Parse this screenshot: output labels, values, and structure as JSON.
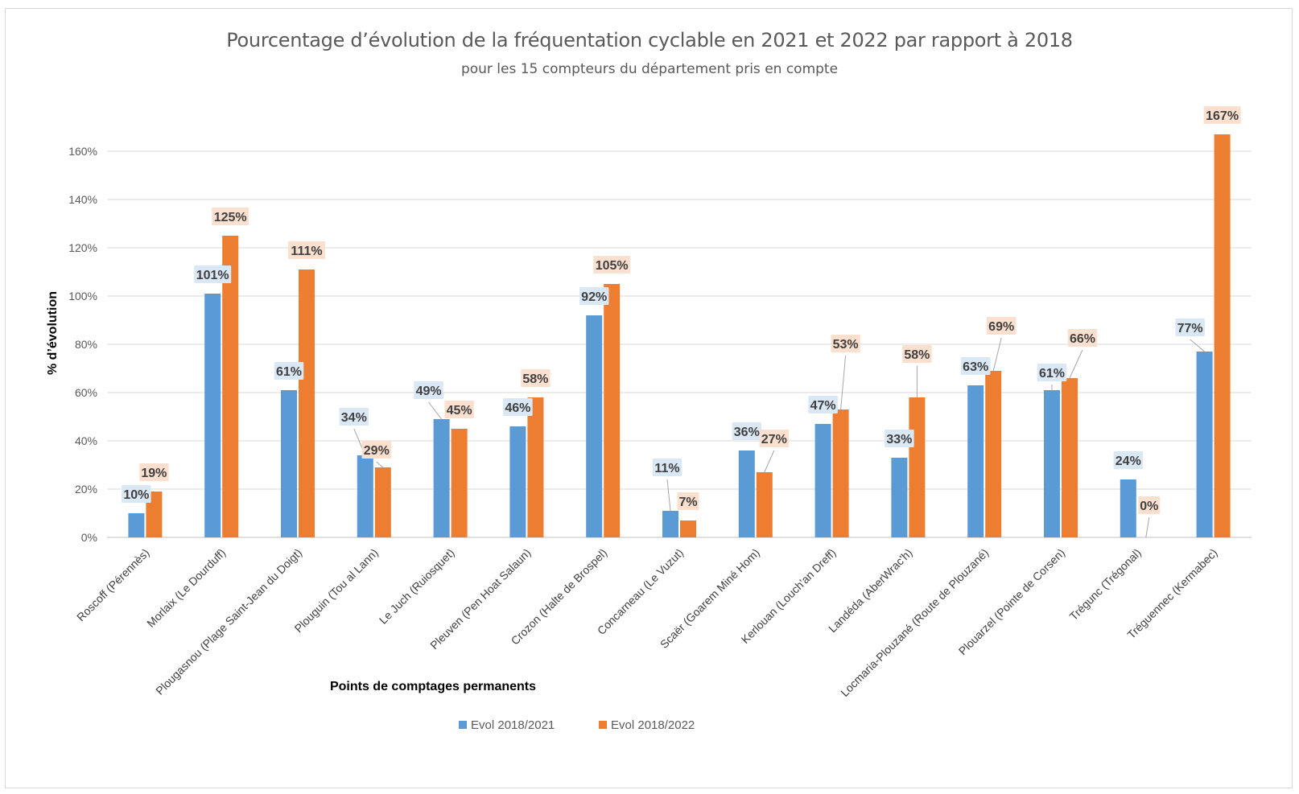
{
  "chart_data": {
    "type": "bar",
    "title": "Pourcentage d’évolution de la fréquentation cyclable en 2021 et 2022 par rapport à 2018",
    "subtitle": "pour les 15 compteurs du département pris en compte",
    "xlabel": "Points de comptages permanents",
    "ylabel": "% d’évolution",
    "ylim": [
      0,
      170
    ],
    "yticks": [
      "0%",
      "20%",
      "40%",
      "60%",
      "80%",
      "100%",
      "120%",
      "140%",
      "160%"
    ],
    "ytick_values": [
      0,
      20,
      40,
      60,
      80,
      100,
      120,
      140,
      160
    ],
    "grid": true,
    "legend_position": "bottom",
    "categories": [
      "Roscoff (Pérennès)",
      "Morlaix (Le Dourduff)",
      "Plougasnou (Plage Saint-Jean du Doigt)",
      "Plouguin (Tou al Lann)",
      "Le Juch (Ruiosquet)",
      "Pleuven (Pen Hoat Salaun)",
      "Crozon (Halte de Brospel)",
      "Concarneau (Le Vuzut)",
      "Scaër (Goarem Miné Hom)",
      "Kerlouan (Louch'an Dreff)",
      "Landéda (AberWrac'h)",
      "Locmaria-Plouzané (Route de Plouzané)",
      "Plouarzel (Pointe de Corsen)",
      "Trégunc (Trégonal)",
      "Tréguennec (Kermabec)"
    ],
    "series": [
      {
        "name": "Evol 2018/2021",
        "color": "#5b9bd5",
        "label_bg": "#dae7f5",
        "values": [
          10,
          101,
          61,
          34,
          49,
          46,
          92,
          11,
          36,
          47,
          33,
          63,
          61,
          24,
          77
        ],
        "labels": [
          "10%",
          "101%",
          "61%",
          "34%",
          "49%",
          "46%",
          "92%",
          "11%",
          "36%",
          "47%",
          "33%",
          "63%",
          "61%",
          "24%",
          "77%"
        ]
      },
      {
        "name": "Evol 2018/2022",
        "color": "#ed7d31",
        "label_bg": "#fbe0d0",
        "values": [
          19,
          125,
          111,
          29,
          45,
          58,
          105,
          7,
          27,
          53,
          58,
          69,
          66,
          0,
          167
        ],
        "labels": [
          "19%",
          "125%",
          "111%",
          "29%",
          "45%",
          "58%",
          "105%",
          "7%",
          "27%",
          "53%",
          "58%",
          "69%",
          "66%",
          "0%",
          "167%"
        ]
      }
    ]
  }
}
